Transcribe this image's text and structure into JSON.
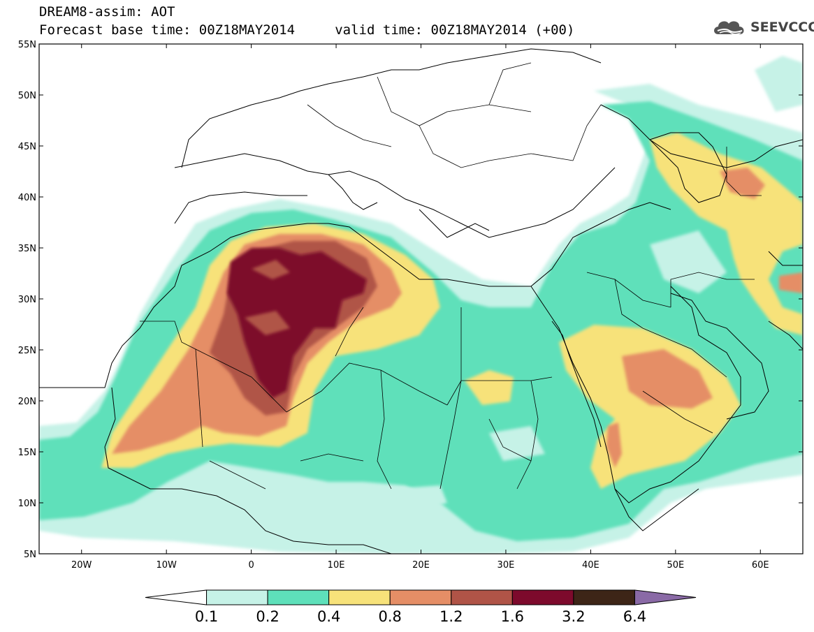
{
  "header": {
    "title_line1": "DREAM8-assim: AOT",
    "title_line2": "Forecast base time: 00Z18MAY2014     valid time: 00Z18MAY2014 (+00)"
  },
  "logo": {
    "text": "SEEVCCC",
    "icon": "cloud-logo-icon"
  },
  "map": {
    "lon_range": [
      -25,
      65
    ],
    "lat_range": [
      5,
      55
    ],
    "lat_ticks": [
      {
        "value": 55,
        "label": "55N"
      },
      {
        "value": 50,
        "label": "50N"
      },
      {
        "value": 45,
        "label": "45N"
      },
      {
        "value": 40,
        "label": "40N"
      },
      {
        "value": 35,
        "label": "35N"
      },
      {
        "value": 30,
        "label": "30N"
      },
      {
        "value": 25,
        "label": "25N"
      },
      {
        "value": 20,
        "label": "20N"
      },
      {
        "value": 15,
        "label": "15N"
      },
      {
        "value": 10,
        "label": "10N"
      },
      {
        "value": 5,
        "label": "5N"
      }
    ],
    "lon_ticks": [
      {
        "value": -20,
        "label": "20W"
      },
      {
        "value": -10,
        "label": "10W"
      },
      {
        "value": 0,
        "label": "0"
      },
      {
        "value": 10,
        "label": "10E"
      },
      {
        "value": 20,
        "label": "20E"
      },
      {
        "value": 30,
        "label": "30E"
      },
      {
        "value": 40,
        "label": "40E"
      },
      {
        "value": 50,
        "label": "50E"
      },
      {
        "value": 60,
        "label": "60E"
      }
    ]
  },
  "colorbar": {
    "colors": [
      "#ffffff",
      "#c6f2e7",
      "#5ee0ba",
      "#f7e27a",
      "#e58e66",
      "#b05447",
      "#7d0a2c",
      "#3d2517",
      "#8a6aa6"
    ],
    "labels": [
      "0.1",
      "0.2",
      "0.4",
      "0.8",
      "1.2",
      "1.6",
      "3.2",
      "6.4"
    ]
  }
}
